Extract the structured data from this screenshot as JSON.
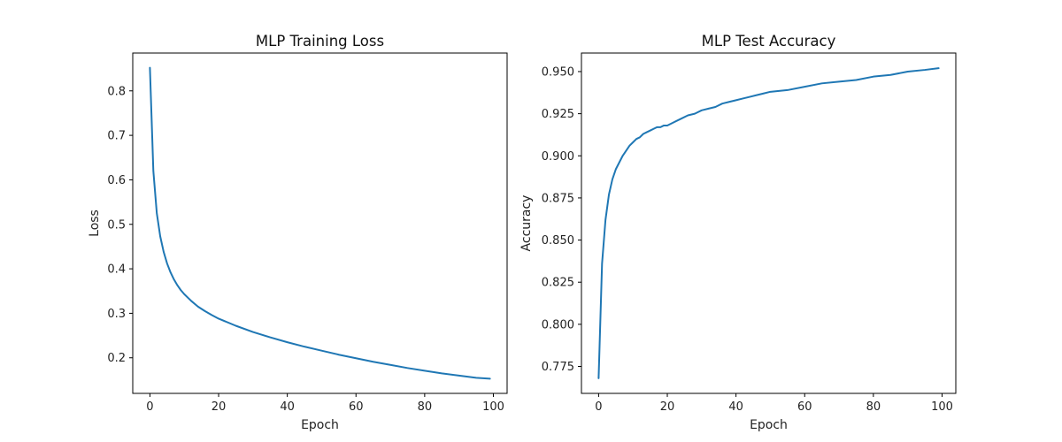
{
  "figure": {
    "background": "#ffffff",
    "line_color": "#1f77b4"
  },
  "chart_data": [
    {
      "type": "line",
      "title": "MLP Training Loss",
      "xlabel": "Epoch",
      "ylabel": "Loss",
      "xlim": [
        -5,
        104
      ],
      "ylim": [
        0.12,
        0.885
      ],
      "xticks": [
        0,
        20,
        40,
        60,
        80,
        100
      ],
      "xtick_labels": [
        "0",
        "20",
        "40",
        "60",
        "80",
        "100"
      ],
      "yticks": [
        0.2,
        0.3,
        0.4,
        0.5,
        0.6,
        0.7,
        0.8
      ],
      "ytick_labels": [
        "0.2",
        "0.3",
        "0.4",
        "0.5",
        "0.6",
        "0.7",
        "0.8"
      ],
      "grid": false,
      "series": [
        {
          "color": "#1f77b4",
          "x": [
            0,
            1,
            2,
            3,
            4,
            5,
            6,
            7,
            8,
            9,
            10,
            12,
            14,
            16,
            18,
            20,
            25,
            30,
            35,
            40,
            45,
            50,
            55,
            60,
            65,
            70,
            75,
            80,
            85,
            90,
            95,
            99
          ],
          "y": [
            0.852,
            0.62,
            0.525,
            0.473,
            0.438,
            0.412,
            0.392,
            0.376,
            0.363,
            0.352,
            0.343,
            0.328,
            0.315,
            0.305,
            0.296,
            0.288,
            0.272,
            0.258,
            0.246,
            0.235,
            0.225,
            0.216,
            0.207,
            0.199,
            0.191,
            0.184,
            0.177,
            0.171,
            0.165,
            0.16,
            0.155,
            0.153
          ]
        }
      ]
    },
    {
      "type": "line",
      "title": "MLP Test Accuracy",
      "xlabel": "Epoch",
      "ylabel": "Accuracy",
      "xlim": [
        -5,
        104
      ],
      "ylim": [
        0.759,
        0.961
      ],
      "xticks": [
        0,
        20,
        40,
        60,
        80,
        100
      ],
      "xtick_labels": [
        "0",
        "20",
        "40",
        "60",
        "80",
        "100"
      ],
      "yticks": [
        0.775,
        0.8,
        0.825,
        0.85,
        0.875,
        0.9,
        0.925,
        0.95
      ],
      "ytick_labels": [
        "0.775",
        "0.800",
        "0.825",
        "0.850",
        "0.875",
        "0.900",
        "0.925",
        "0.950"
      ],
      "grid": false,
      "series": [
        {
          "color": "#1f77b4",
          "x": [
            0,
            1,
            2,
            3,
            4,
            5,
            6,
            7,
            8,
            9,
            10,
            11,
            12,
            13,
            14,
            15,
            16,
            17,
            18,
            19,
            20,
            22,
            24,
            26,
            28,
            30,
            32,
            34,
            36,
            38,
            40,
            42,
            44,
            46,
            48,
            50,
            55,
            60,
            65,
            70,
            75,
            80,
            85,
            90,
            95,
            99
          ],
          "y": [
            0.768,
            0.836,
            0.862,
            0.877,
            0.886,
            0.892,
            0.896,
            0.9,
            0.903,
            0.906,
            0.908,
            0.91,
            0.911,
            0.913,
            0.914,
            0.915,
            0.916,
            0.917,
            0.917,
            0.918,
            0.918,
            0.92,
            0.922,
            0.924,
            0.925,
            0.927,
            0.928,
            0.929,
            0.931,
            0.932,
            0.933,
            0.934,
            0.935,
            0.936,
            0.937,
            0.938,
            0.939,
            0.941,
            0.943,
            0.944,
            0.945,
            0.947,
            0.948,
            0.95,
            0.951,
            0.952
          ]
        }
      ]
    }
  ]
}
